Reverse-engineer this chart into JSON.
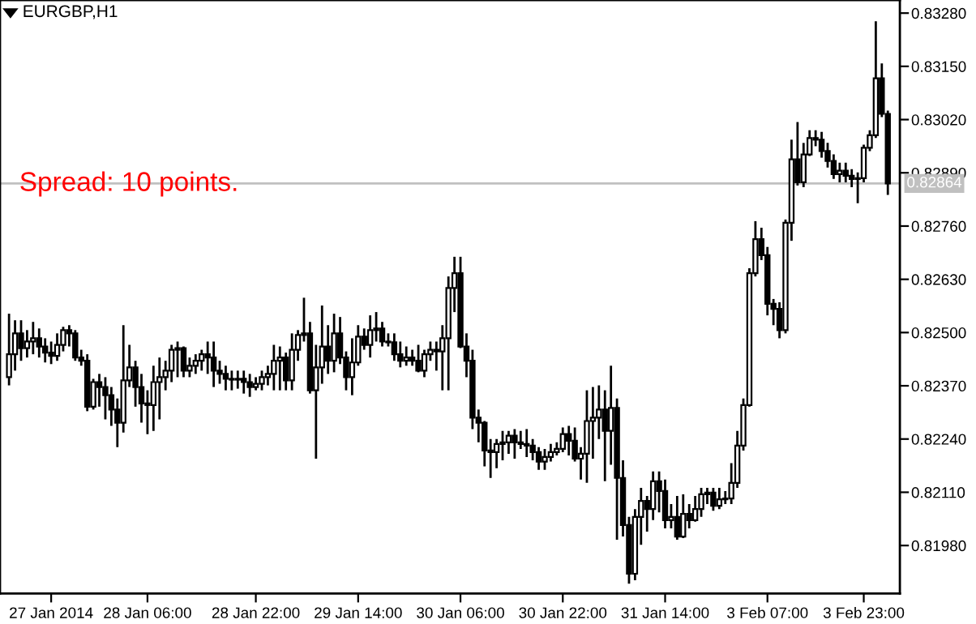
{
  "chart_data": {
    "type": "candlestick",
    "title": "EURGBP,H1",
    "annotations": [
      {
        "text": "Spread: 10 points."
      }
    ],
    "categories": [
      null,
      null,
      null,
      null,
      null,
      null,
      null,
      "27 Jan 2014",
      null,
      null,
      null,
      null,
      null,
      null,
      null,
      null,
      null,
      null,
      null,
      null,
      null,
      null,
      null,
      "28 Jan 06:00",
      null,
      null,
      null,
      null,
      null,
      null,
      null,
      null,
      null,
      null,
      null,
      null,
      null,
      null,
      null,
      null,
      null,
      "28 Jan 22:00",
      null,
      null,
      null,
      null,
      null,
      null,
      null,
      null,
      null,
      null,
      null,
      null,
      null,
      null,
      null,
      null,
      "29 Jan 14:00",
      null,
      null,
      null,
      null,
      null,
      null,
      null,
      null,
      null,
      null,
      null,
      null,
      null,
      null,
      null,
      null,
      "30 Jan 06:00",
      null,
      null,
      null,
      null,
      null,
      null,
      null,
      null,
      null,
      null,
      null,
      null,
      null,
      null,
      null,
      null,
      "30 Jan 22:00",
      null,
      null,
      null,
      null,
      null,
      null,
      null,
      null,
      null,
      null,
      null,
      null,
      null,
      null,
      null,
      null,
      "31 Jan 14:00",
      null,
      null,
      null,
      null,
      null,
      null,
      null,
      null,
      null,
      null,
      null,
      null,
      null,
      null,
      null,
      null,
      "3 Feb 07:00",
      null,
      null,
      null,
      null,
      null,
      null,
      null,
      null,
      null,
      null,
      null,
      null,
      null,
      null,
      null,
      "3 Feb 23:00",
      null,
      null,
      null,
      null
    ],
    "ohlc": [
      [
        0.82391,
        0.82546,
        0.82371,
        0.82447
      ],
      [
        0.82447,
        0.8253,
        0.82407,
        0.82498
      ],
      [
        0.82498,
        0.8253,
        0.82431,
        0.82462
      ],
      [
        0.82462,
        0.82506,
        0.82439,
        0.82478
      ],
      [
        0.82478,
        0.82526,
        0.82447,
        0.82486
      ],
      [
        0.82486,
        0.8251,
        0.82439,
        0.82466
      ],
      [
        0.82466,
        0.82486,
        0.82427,
        0.82451
      ],
      [
        0.82451,
        0.82478,
        0.82423,
        0.82443
      ],
      [
        0.82443,
        0.82498,
        0.82431,
        0.8247
      ],
      [
        0.8247,
        0.82514,
        0.82454,
        0.82506
      ],
      [
        0.82506,
        0.82518,
        0.82466,
        0.82498
      ],
      [
        0.82498,
        0.82506,
        0.82431,
        0.82439
      ],
      [
        0.82439,
        0.82458,
        0.82419,
        0.82431
      ],
      [
        0.82431,
        0.82447,
        0.82308,
        0.82319
      ],
      [
        0.82319,
        0.82387,
        0.82312,
        0.82379
      ],
      [
        0.82379,
        0.82399,
        0.82319,
        0.82367
      ],
      [
        0.82367,
        0.82391,
        0.82288,
        0.82347
      ],
      [
        0.82347,
        0.82367,
        0.82272,
        0.82312
      ],
      [
        0.82312,
        0.82339,
        0.8222,
        0.8228
      ],
      [
        0.8228,
        0.82518,
        0.82256,
        0.82383
      ],
      [
        0.82383,
        0.8247,
        0.82367,
        0.82415
      ],
      [
        0.82415,
        0.82431,
        0.82319,
        0.82367
      ],
      [
        0.82367,
        0.82399,
        0.8228,
        0.82327
      ],
      [
        0.82327,
        0.82359,
        0.82252,
        0.82323
      ],
      [
        0.82323,
        0.82419,
        0.8226,
        0.82379
      ],
      [
        0.82379,
        0.82439,
        0.82288,
        0.82391
      ],
      [
        0.82391,
        0.82431,
        0.82359,
        0.82407
      ],
      [
        0.82407,
        0.8247,
        0.82379,
        0.82458
      ],
      [
        0.82458,
        0.82478,
        0.82391,
        0.82462
      ],
      [
        0.82462,
        0.82466,
        0.82391,
        0.82407
      ],
      [
        0.82407,
        0.82439,
        0.82391,
        0.82419
      ],
      [
        0.82419,
        0.82447,
        0.82399,
        0.82431
      ],
      [
        0.82431,
        0.82458,
        0.82407,
        0.82447
      ],
      [
        0.82447,
        0.82478,
        0.82399,
        0.82439
      ],
      [
        0.82439,
        0.82478,
        0.82367,
        0.82407
      ],
      [
        0.82407,
        0.82431,
        0.82375,
        0.82399
      ],
      [
        0.82399,
        0.82419,
        0.82359,
        0.82387
      ],
      [
        0.82387,
        0.82407,
        0.82359,
        0.82385
      ],
      [
        0.82385,
        0.82407,
        0.82363,
        0.82387
      ],
      [
        0.82387,
        0.82407,
        0.82351,
        0.82379
      ],
      [
        0.82379,
        0.82399,
        0.82343,
        0.82367
      ],
      [
        0.82367,
        0.82391,
        0.82359,
        0.82375
      ],
      [
        0.82375,
        0.82407,
        0.82359,
        0.82391
      ],
      [
        0.82391,
        0.82419,
        0.82371,
        0.82399
      ],
      [
        0.82399,
        0.8247,
        0.82359,
        0.82431
      ],
      [
        0.82431,
        0.82466,
        0.82359,
        0.82439
      ],
      [
        0.82439,
        0.82451,
        0.82359,
        0.82383
      ],
      [
        0.82383,
        0.82498,
        0.82359,
        0.82458
      ],
      [
        0.82458,
        0.82506,
        0.82431,
        0.82494
      ],
      [
        0.82494,
        0.82585,
        0.82478,
        0.82498
      ],
      [
        0.82498,
        0.82526,
        0.82351,
        0.82359
      ],
      [
        0.82359,
        0.8247,
        0.82192,
        0.82415
      ],
      [
        0.82415,
        0.82566,
        0.82375,
        0.82466
      ],
      [
        0.82466,
        0.82518,
        0.82399,
        0.82431
      ],
      [
        0.82431,
        0.82546,
        0.82403,
        0.82498
      ],
      [
        0.82498,
        0.82538,
        0.82423,
        0.82439
      ],
      [
        0.82439,
        0.82454,
        0.82359,
        0.82391
      ],
      [
        0.82391,
        0.82486,
        0.82347,
        0.82427
      ],
      [
        0.82427,
        0.82518,
        0.82419,
        0.8249
      ],
      [
        0.8249,
        0.8251,
        0.82458,
        0.8247
      ],
      [
        0.8247,
        0.82542,
        0.82439,
        0.82506
      ],
      [
        0.82506,
        0.8255,
        0.82478,
        0.8251
      ],
      [
        0.8251,
        0.82526,
        0.82466,
        0.82478
      ],
      [
        0.82478,
        0.82498,
        0.82466,
        0.82476
      ],
      [
        0.82476,
        0.82498,
        0.82431,
        0.82447
      ],
      [
        0.82447,
        0.82478,
        0.82415,
        0.82431
      ],
      [
        0.82431,
        0.82466,
        0.82419,
        0.82439
      ],
      [
        0.82439,
        0.82458,
        0.82419,
        0.82431
      ],
      [
        0.82431,
        0.8247,
        0.82403,
        0.82407
      ],
      [
        0.82407,
        0.82458,
        0.82391,
        0.82447
      ],
      [
        0.82447,
        0.82478,
        0.82431,
        0.82458
      ],
      [
        0.82458,
        0.82478,
        0.82407,
        0.82454
      ],
      [
        0.82454,
        0.82518,
        0.82359,
        0.82486
      ],
      [
        0.82486,
        0.82637,
        0.82359,
        0.82609
      ],
      [
        0.82609,
        0.82685,
        0.8255,
        0.82645
      ],
      [
        0.82645,
        0.82685,
        0.82462,
        0.82466
      ],
      [
        0.82466,
        0.82498,
        0.82391,
        0.82431
      ],
      [
        0.82431,
        0.82458,
        0.82264,
        0.82292
      ],
      [
        0.82292,
        0.82312,
        0.82232,
        0.8228
      ],
      [
        0.8228,
        0.82284,
        0.82173,
        0.82212
      ],
      [
        0.82212,
        0.8224,
        0.82145,
        0.82208
      ],
      [
        0.82208,
        0.8224,
        0.82169,
        0.82228
      ],
      [
        0.82228,
        0.8226,
        0.82188,
        0.82232
      ],
      [
        0.82232,
        0.8226,
        0.82204,
        0.82248
      ],
      [
        0.82248,
        0.82264,
        0.82192,
        0.82232
      ],
      [
        0.82232,
        0.8226,
        0.82216,
        0.82228
      ],
      [
        0.82228,
        0.82264,
        0.82196,
        0.82224
      ],
      [
        0.82224,
        0.8224,
        0.82188,
        0.82208
      ],
      [
        0.82208,
        0.8222,
        0.82165,
        0.82185
      ],
      [
        0.82185,
        0.82216,
        0.82165,
        0.82196
      ],
      [
        0.82196,
        0.82228,
        0.82185,
        0.82208
      ],
      [
        0.82208,
        0.82232,
        0.822,
        0.82216
      ],
      [
        0.82216,
        0.82268,
        0.82208,
        0.82252
      ],
      [
        0.82252,
        0.82272,
        0.822,
        0.82236
      ],
      [
        0.82236,
        0.82268,
        0.82185,
        0.82192
      ],
      [
        0.82192,
        0.8222,
        0.82141,
        0.82204
      ],
      [
        0.82204,
        0.82359,
        0.82133,
        0.82284
      ],
      [
        0.82284,
        0.82367,
        0.82192,
        0.82292
      ],
      [
        0.82292,
        0.82371,
        0.8224,
        0.82312
      ],
      [
        0.82312,
        0.82359,
        0.82137,
        0.8226
      ],
      [
        0.8226,
        0.82419,
        0.82177,
        0.82316
      ],
      [
        0.82316,
        0.82339,
        0.81994,
        0.82145
      ],
      [
        0.82145,
        0.82188,
        0.82002,
        0.8203
      ],
      [
        0.8203,
        0.8205,
        0.81887,
        0.81911
      ],
      [
        0.81911,
        0.82069,
        0.81895,
        0.8205
      ],
      [
        0.8205,
        0.82121,
        0.81982,
        0.82089
      ],
      [
        0.82089,
        0.82101,
        0.82014,
        0.82069
      ],
      [
        0.82069,
        0.82161,
        0.82042,
        0.82137
      ],
      [
        0.82137,
        0.82161,
        0.82061,
        0.82113
      ],
      [
        0.82113,
        0.82141,
        0.82022,
        0.82042
      ],
      [
        0.82042,
        0.82081,
        0.82022,
        0.8205
      ],
      [
        0.8205,
        0.82101,
        0.81994,
        0.82002
      ],
      [
        0.82002,
        0.82105,
        0.81998,
        0.82057
      ],
      [
        0.82057,
        0.82081,
        0.82022,
        0.82042
      ],
      [
        0.82042,
        0.82101,
        0.82038,
        0.82069
      ],
      [
        0.82069,
        0.82121,
        0.8205,
        0.82105
      ],
      [
        0.82105,
        0.82121,
        0.82081,
        0.82109
      ],
      [
        0.82109,
        0.82121,
        0.82065,
        0.82077
      ],
      [
        0.82077,
        0.82121,
        0.82069,
        0.82093
      ],
      [
        0.82093,
        0.82113,
        0.82081,
        0.82095
      ],
      [
        0.82095,
        0.82181,
        0.82081,
        0.82133
      ],
      [
        0.82133,
        0.8226,
        0.82121,
        0.82224
      ],
      [
        0.82224,
        0.82339,
        0.82212,
        0.82323
      ],
      [
        0.82323,
        0.82657,
        0.82319,
        0.82645
      ],
      [
        0.82645,
        0.82772,
        0.82637,
        0.82728
      ],
      [
        0.82728,
        0.82756,
        0.82677,
        0.82689
      ],
      [
        0.82689,
        0.82709,
        0.82542,
        0.8257
      ],
      [
        0.8257,
        0.82582,
        0.82518,
        0.82558
      ],
      [
        0.82558,
        0.82574,
        0.82486,
        0.82506
      ],
      [
        0.82506,
        0.82776,
        0.82498,
        0.82768
      ],
      [
        0.82768,
        0.82971,
        0.82724,
        0.82923
      ],
      [
        0.82923,
        0.83014,
        0.82859,
        0.82867
      ],
      [
        0.82867,
        0.82963,
        0.82855,
        0.82935
      ],
      [
        0.82935,
        0.82994,
        0.82931,
        0.82975
      ],
      [
        0.82975,
        0.82994,
        0.82955,
        0.82971
      ],
      [
        0.82971,
        0.8299,
        0.82927,
        0.82943
      ],
      [
        0.82943,
        0.82963,
        0.82903,
        0.82919
      ],
      [
        0.82919,
        0.82935,
        0.82875,
        0.82887
      ],
      [
        0.82887,
        0.82915,
        0.82867,
        0.82895
      ],
      [
        0.82895,
        0.82915,
        0.82867,
        0.82883
      ],
      [
        0.82883,
        0.82899,
        0.82855,
        0.82875
      ],
      [
        0.82875,
        0.82891,
        0.82816,
        0.82877
      ],
      [
        0.82877,
        0.82959,
        0.82867,
        0.82951
      ],
      [
        0.82951,
        0.82994,
        0.82943,
        0.82982
      ],
      [
        0.82982,
        0.8326,
        0.82975,
        0.83121
      ],
      [
        0.83121,
        0.83157,
        0.83026,
        0.83034
      ],
      [
        0.83034,
        0.83042,
        0.82836,
        0.82864
      ]
    ],
    "ylim": [
      0.81863,
      0.83312
    ],
    "yticks": [
      {
        "value": 0.8198,
        "label": "0.81980"
      },
      {
        "value": 0.8211,
        "label": "0.82110"
      },
      {
        "value": 0.8224,
        "label": "0.82240"
      },
      {
        "value": 0.8237,
        "label": "0.82370"
      },
      {
        "value": 0.825,
        "label": "0.82500"
      },
      {
        "value": 0.8263,
        "label": "0.82630"
      },
      {
        "value": 0.8276,
        "label": "0.82760"
      },
      {
        "value": 0.8289,
        "label": "0.82890"
      },
      {
        "value": 0.8302,
        "label": "0.83020"
      },
      {
        "value": 0.8315,
        "label": "0.83150"
      },
      {
        "value": 0.8328,
        "label": "0.83280"
      }
    ],
    "ref_lines": [
      {
        "axis": "y",
        "value": 0.82864,
        "label": "0.82864",
        "color": "#c0c0c0"
      }
    ],
    "grid": false,
    "legend": false
  }
}
